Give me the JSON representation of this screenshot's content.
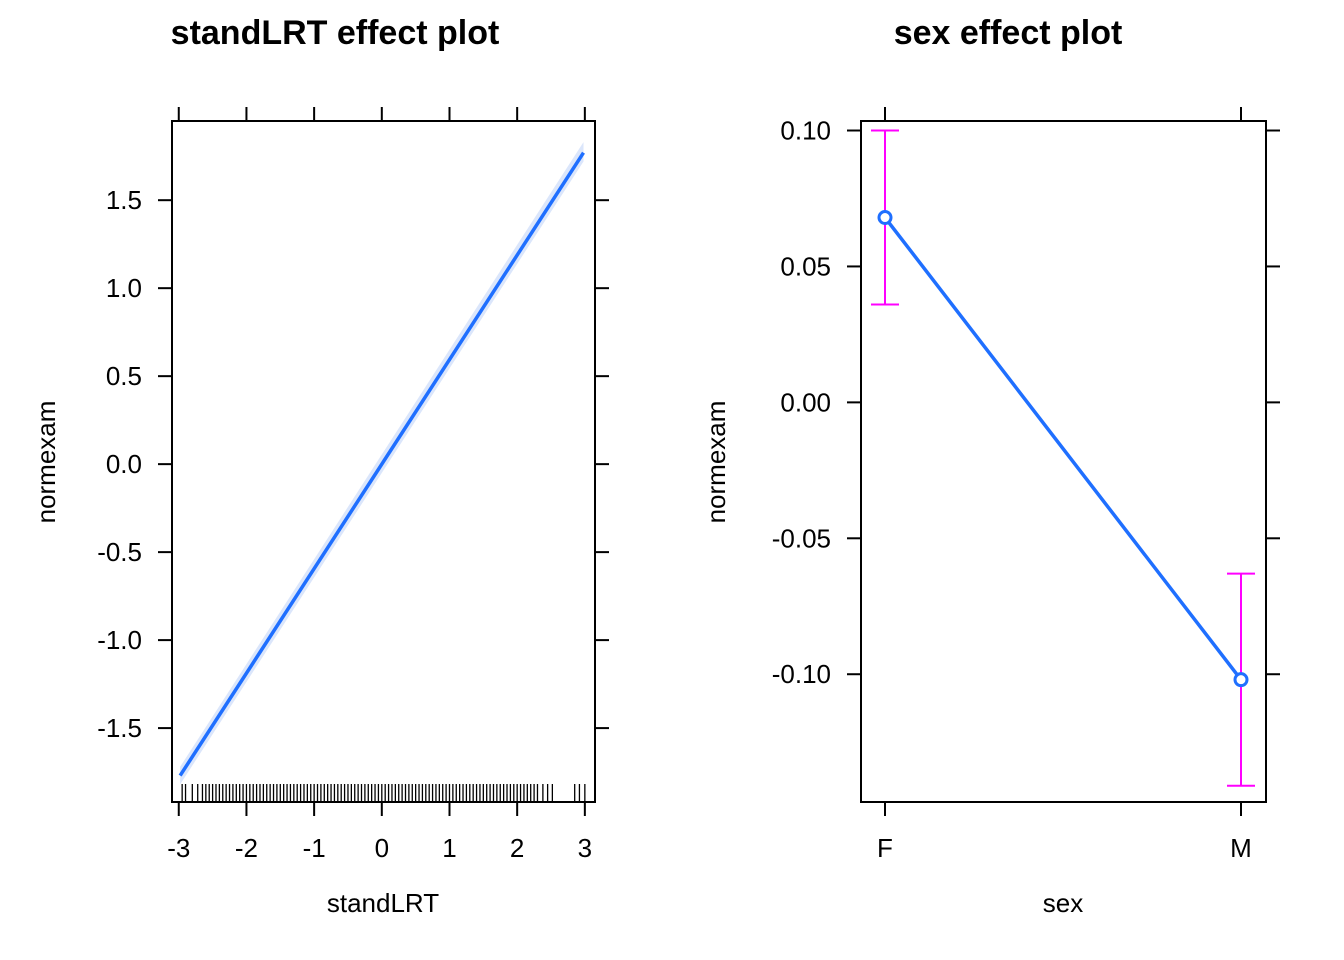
{
  "colors": {
    "fit_line": "#1f6fff",
    "ci_band": "#dbe6fb",
    "error_bar": "#ff00ff",
    "rug": "#000000",
    "frame": "#000000"
  },
  "chart_data": [
    {
      "type": "line",
      "title": "standLRT effect plot",
      "xlabel": "standLRT",
      "ylabel": "normexam",
      "xlim": [
        -3.1,
        3.15
      ],
      "ylim": [
        -1.92,
        1.95
      ],
      "xticks": [
        -3,
        -2,
        -1,
        0,
        1,
        2,
        3
      ],
      "xtick_labels": [
        "-3",
        "-2",
        "-1",
        "0",
        "1",
        "2",
        "3"
      ],
      "yticks": [
        -1.5,
        -1.0,
        -0.5,
        0.0,
        0.5,
        1.0,
        1.5
      ],
      "ytick_labels": [
        "-1.5",
        "-1.0",
        "-0.5",
        "0.0",
        "0.5",
        "1.0",
        "1.5"
      ],
      "series": [
        {
          "x": [
            -2.98,
            2.98
          ],
          "y": [
            -1.77,
            1.77
          ],
          "ci_lower_start": -1.82,
          "ci_upper_start": -1.72,
          "ci_lower_end": 1.72,
          "ci_upper_end": 1.83
        }
      ],
      "rug": [
        -2.95,
        -2.9,
        -2.8,
        -2.72,
        -2.65,
        -2.6,
        -2.55,
        -2.5,
        -2.45,
        -2.4,
        -2.35,
        -2.3,
        -2.25,
        -2.2,
        -2.15,
        -2.1,
        -2.05,
        -2.0,
        -1.95,
        -1.9,
        -1.85,
        -1.8,
        -1.75,
        -1.7,
        -1.65,
        -1.6,
        -1.55,
        -1.5,
        -1.45,
        -1.4,
        -1.35,
        -1.3,
        -1.25,
        -1.2,
        -1.15,
        -1.1,
        -1.05,
        -1.0,
        -0.95,
        -0.9,
        -0.85,
        -0.8,
        -0.75,
        -0.7,
        -0.65,
        -0.6,
        -0.55,
        -0.5,
        -0.45,
        -0.4,
        -0.35,
        -0.3,
        -0.25,
        -0.2,
        -0.15,
        -0.1,
        -0.05,
        0.0,
        0.05,
        0.1,
        0.15,
        0.2,
        0.25,
        0.3,
        0.35,
        0.4,
        0.45,
        0.5,
        0.55,
        0.6,
        0.65,
        0.7,
        0.75,
        0.8,
        0.85,
        0.9,
        0.95,
        1.0,
        1.05,
        1.1,
        1.15,
        1.2,
        1.25,
        1.3,
        1.35,
        1.4,
        1.45,
        1.5,
        1.55,
        1.6,
        1.65,
        1.7,
        1.75,
        1.8,
        1.85,
        1.9,
        1.95,
        2.0,
        2.05,
        2.1,
        2.15,
        2.2,
        2.25,
        2.3,
        2.38,
        2.45,
        2.52,
        2.85,
        2.92,
        3.0
      ],
      "grid": false,
      "legend": "none"
    },
    {
      "type": "line",
      "title": "sex effect plot",
      "xlabel": "sex",
      "ylabel": "normexam",
      "categories": [
        "F",
        "M"
      ],
      "ylim": [
        -0.147,
        0.1035
      ],
      "yticks": [
        -0.1,
        -0.05,
        0.0,
        0.05,
        0.1
      ],
      "ytick_labels": [
        "-0.10",
        "-0.05",
        "0.00",
        "0.05",
        "0.10"
      ],
      "series": [
        {
          "values": [
            0.068,
            -0.102
          ],
          "lower": [
            0.036,
            -0.141
          ],
          "upper": [
            0.1,
            -0.063
          ]
        }
      ],
      "grid": false,
      "legend": "none"
    }
  ]
}
